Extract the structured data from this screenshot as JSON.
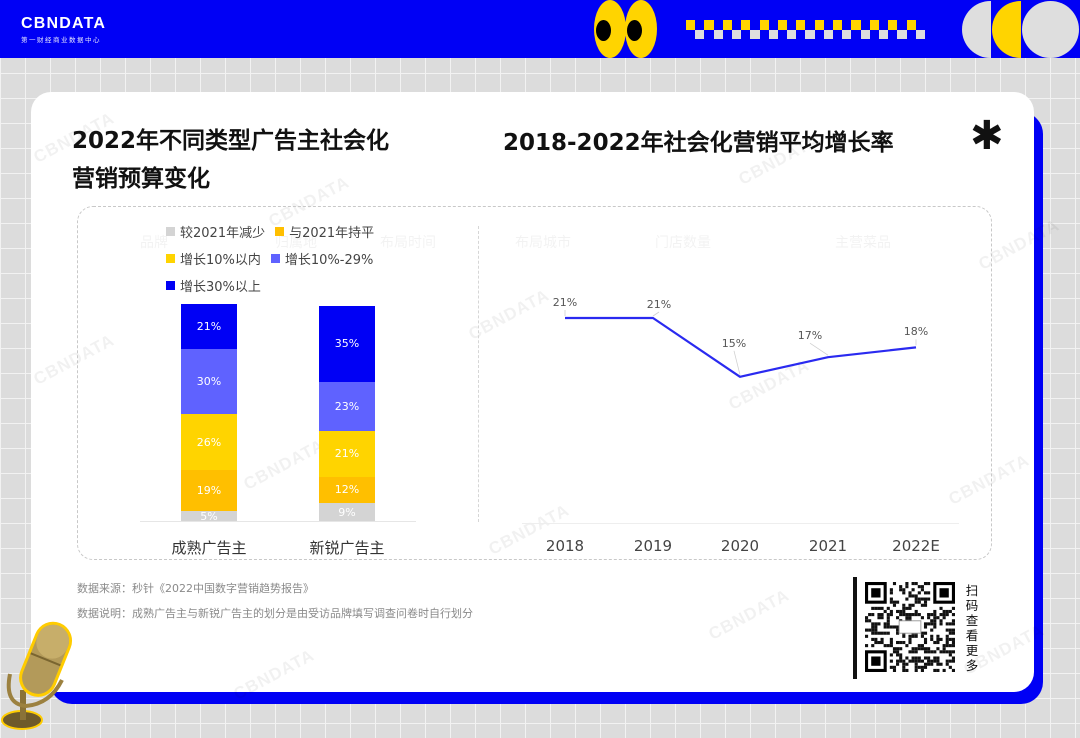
{
  "header": {
    "logo": "CBNDATA",
    "logo_subtitle": "第一财经商业数据中心"
  },
  "colors": {
    "brand_blue": "#0000f5",
    "yellow": "#ffd400",
    "light_gray": "#dedede"
  },
  "left_chart": {
    "title_line1": "2022年不同类型广告主社会化",
    "title_line2": "营销预算变化"
  },
  "right_chart": {
    "title": "2018-2022年社会化营销平均增长率"
  },
  "decoration": {
    "asterisk": "✱"
  },
  "watermark_text": "CBNDATA",
  "ghost_labels": [
    "品牌",
    "归属地",
    "布局时间",
    "布局城市",
    "门店数量",
    "主营菜品"
  ],
  "chart_data": [
    {
      "type": "bar",
      "stacked": true,
      "title": "2022年不同类型广告主社会化营销预算变化",
      "categories": [
        "成熟广告主",
        "新锐广告主"
      ],
      "series": [
        {
          "name": "较2021年减少",
          "color": "#d4d4d4",
          "values": [
            5,
            9
          ],
          "labels": [
            "5%",
            "9%"
          ]
        },
        {
          "name": "与2021年持平",
          "color": "#ffbf00",
          "values": [
            19,
            12
          ],
          "labels": [
            "19%",
            "12%"
          ]
        },
        {
          "name": "增长10%以内",
          "color": "#ffd400",
          "values": [
            26,
            21
          ],
          "labels": [
            "26%",
            "21%"
          ]
        },
        {
          "name": "增长10%-29%",
          "color": "#5f62ff",
          "values": [
            30,
            23
          ],
          "labels": [
            "30%",
            "23%"
          ]
        },
        {
          "name": "增长30%以上",
          "color": "#0000f5",
          "values": [
            21,
            35
          ],
          "labels": [
            "21%",
            "35%"
          ]
        }
      ],
      "legend_position": "top-left",
      "grid": false
    },
    {
      "type": "line",
      "title": "2018-2022年社会化营销平均增长率",
      "x": [
        "2018",
        "2019",
        "2020",
        "2021",
        "2022E"
      ],
      "series": [
        {
          "name": "社会化营销平均增长率",
          "color": "#2a2af0",
          "values": [
            21,
            21,
            15,
            17,
            18
          ],
          "labels": [
            "21%",
            "21%",
            "15%",
            "17%",
            "18%"
          ]
        }
      ],
      "xlabel": "",
      "ylabel": "",
      "grid": false
    }
  ],
  "notes": {
    "source": "数据来源：秒针《2022中国数字营销趋势报告》",
    "explanation": "数据说明：成熟广告主与新锐广告主的划分是由受访品牌填写调查问卷时自行划分"
  },
  "qr": {
    "caption": "扫码查看更多"
  }
}
